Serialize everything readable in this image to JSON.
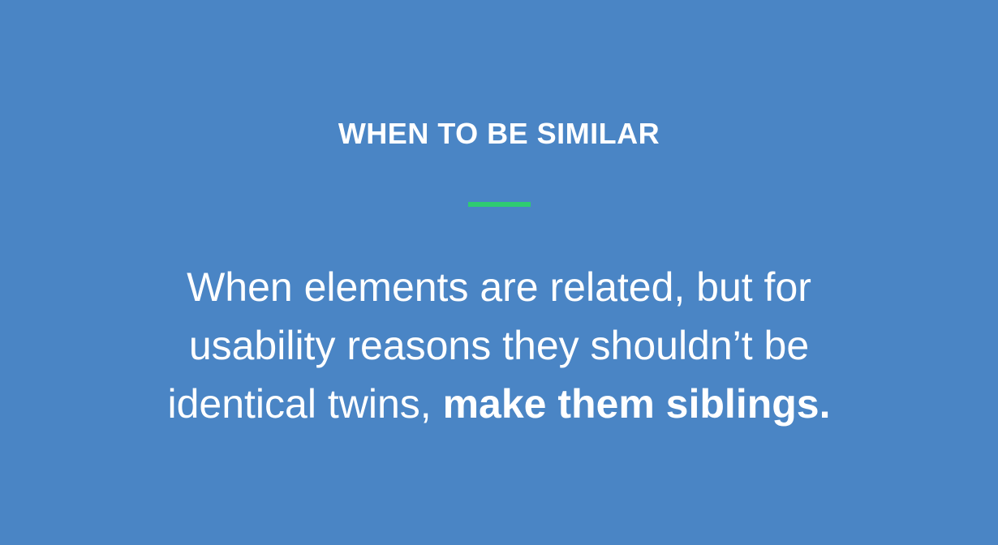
{
  "slide": {
    "title": "WHEN TO BE SIMILAR",
    "body_lines": [
      "When elements are related, but for",
      "usability reasons they shouldn’t be",
      "identical twins,"
    ],
    "body_emphasis": "make them siblings."
  },
  "colors": {
    "background": "#4a85c5",
    "accent": "#2ecc71",
    "text": "#ffffff"
  }
}
